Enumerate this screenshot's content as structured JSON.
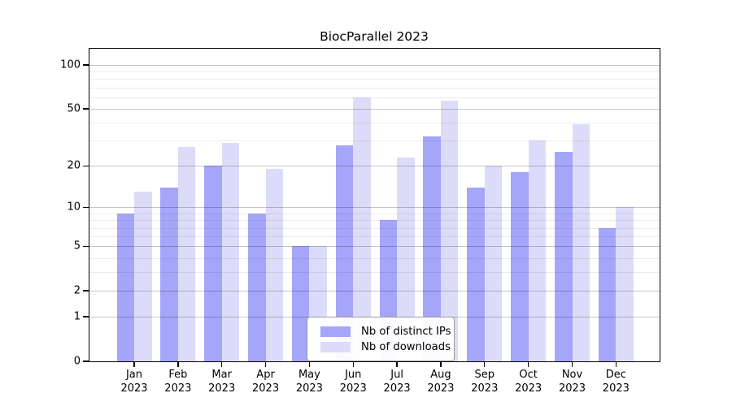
{
  "chart_data": {
    "type": "bar",
    "title": "BiocParallel 2023",
    "categories": [
      "Jan",
      "Feb",
      "Mar",
      "Apr",
      "May",
      "Jun",
      "Jul",
      "Aug",
      "Sep",
      "Oct",
      "Nov",
      "Dec"
    ],
    "x_year_label": "2023",
    "series": [
      {
        "name": "Nb of distinct IPs",
        "color": "#a5a5fa",
        "values": [
          9,
          14,
          20,
          9,
          5,
          28,
          8,
          32,
          14,
          18,
          25,
          7
        ]
      },
      {
        "name": "Nb of downloads",
        "color": "#dcdcfa",
        "values": [
          13,
          27,
          29,
          19,
          5,
          60,
          23,
          57,
          20,
          30,
          39,
          10
        ]
      }
    ],
    "y_scale": "log1p",
    "y_ticks": [
      0,
      1,
      2,
      5,
      10,
      20,
      50,
      100
    ],
    "y_minor_gridlines": [
      3,
      4,
      6,
      7,
      8,
      9,
      30,
      40,
      60,
      70,
      80,
      90
    ],
    "ylim": [
      0,
      130
    ],
    "grid": true,
    "legend_position": "inside-bottom-center",
    "colors": {
      "axis": "#000000",
      "major_grid": "#c6c6c6",
      "minor_grid": "#ececec",
      "background": "#ffffff"
    }
  }
}
